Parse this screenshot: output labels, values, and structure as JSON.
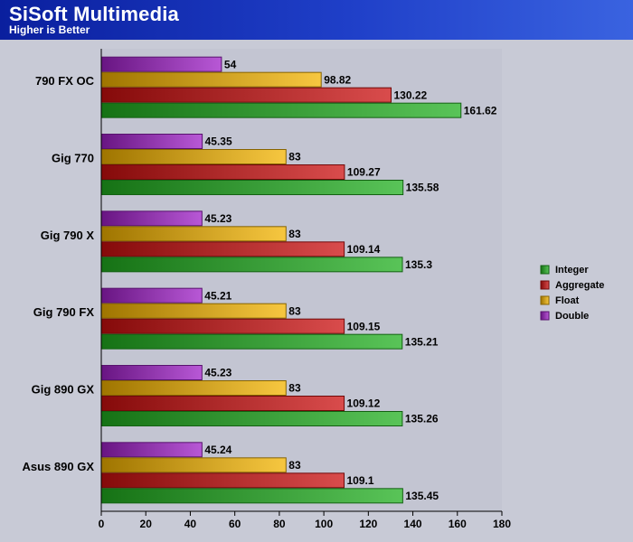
{
  "header": {
    "title": "SiSoft Multimedia",
    "subtitle": "Higher is Better"
  },
  "chart_data": {
    "type": "bar",
    "orientation": "horizontal",
    "categories": [
      "790 FX OC",
      "Gig 770",
      "Gig 790 X",
      "Gig 790 FX",
      "Gig 890 GX",
      "Asus 890 GX"
    ],
    "series": [
      {
        "name": "Double",
        "color": "#a020c8",
        "values": [
          54,
          45.35,
          45.23,
          45.21,
          45.23,
          45.24
        ]
      },
      {
        "name": "Float",
        "color": "#f4b400",
        "values": [
          98.82,
          83,
          83,
          83,
          83,
          83
        ]
      },
      {
        "name": "Aggregate",
        "color": "#cc1010",
        "values": [
          130.22,
          109.27,
          109.14,
          109.15,
          109.12,
          109.1
        ]
      },
      {
        "name": "Integer",
        "color": "#22b020",
        "values": [
          161.62,
          135.58,
          135.3,
          135.21,
          135.26,
          135.45
        ]
      }
    ],
    "value_labels": [
      [
        "54",
        "98.82",
        "130.22",
        "161.62"
      ],
      [
        "45.35",
        "83",
        "109.27",
        "135.58"
      ],
      [
        "45.23",
        "83",
        "109.14",
        "135.3"
      ],
      [
        "45.21",
        "83",
        "109.15",
        "135.21"
      ],
      [
        "45.23",
        "83",
        "109.12",
        "135.26"
      ],
      [
        "45.24",
        "83",
        "109.1",
        "135.45"
      ]
    ],
    "xlim": [
      0,
      180
    ],
    "xticks": [
      "0",
      "20",
      "40",
      "60",
      "80",
      "100",
      "120",
      "140",
      "160",
      "180"
    ],
    "legend": {
      "position": "right",
      "entries": [
        "Integer",
        "Aggregate",
        "Float",
        "Double"
      ]
    },
    "grid": false,
    "title": "SiSoft Multimedia",
    "subtitle": "Higher is Better"
  }
}
